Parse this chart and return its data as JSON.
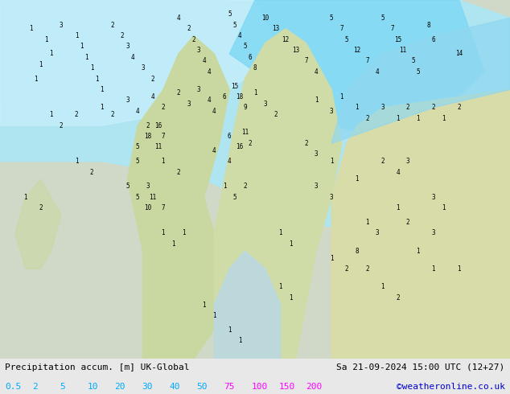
{
  "title_left": "Precipitation accum. [m] UK-Global",
  "title_right": "Sa 21-09-2024 15:00 UTC (12+27)",
  "credit": "©weatheronline.co.uk",
  "colorbar_labels": [
    "0.5",
    "2",
    "5",
    "10",
    "20",
    "30",
    "40",
    "50",
    "75",
    "100",
    "150",
    "200"
  ],
  "colorbar_colors": [
    "#b3f0ff",
    "#80e5ff",
    "#4dd9ff",
    "#1ac6f0",
    "#00aadd",
    "#0088cc",
    "#0066bb",
    "#0044aa",
    "#003399",
    "#ff00ff",
    "#cc00cc",
    "#990099"
  ],
  "bg_color": "#e8e8e8",
  "map_bg": "#f0f0f0",
  "bottom_bar_color": "#f5f5f5",
  "text_color_left": "#000000",
  "text_color_right": "#000000",
  "colorbar_text_color": "#00aaff",
  "credit_color": "#0000cc",
  "figsize": [
    6.34,
    4.9
  ],
  "dpi": 100
}
